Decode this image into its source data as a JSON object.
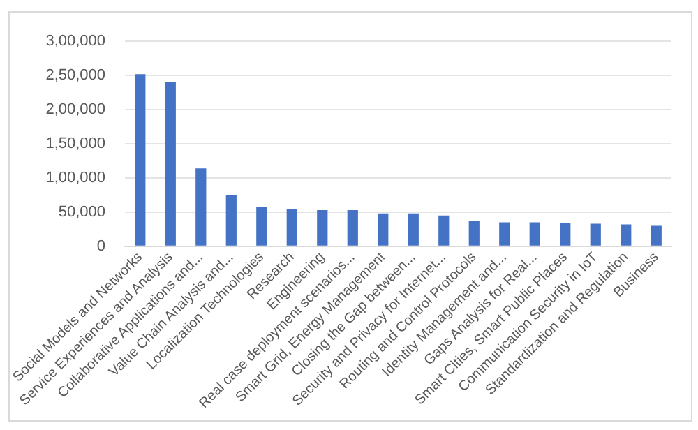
{
  "chart_data": {
    "type": "bar",
    "categories": [
      "Social Models and Networks",
      "Service Experiences and Analysis",
      "Collaborative Applications and...",
      "Value Chain Analysis and...",
      "Localization Technologies",
      "Research",
      "Engineering",
      "Real case deployment scenarios...",
      "Smart Grid, Energy Management",
      "Closing the Gap between...",
      "Security and Privacy for Internet...",
      "Routing and Control Protocols",
      "Identity Management and...",
      "Gaps Analysis for Real...",
      "Smart Cities, Smart Public Places",
      "Communication Security in IoT",
      "Standardization and Regulation",
      "Business"
    ],
    "values": [
      252000,
      240000,
      114000,
      75000,
      57000,
      54000,
      53000,
      53000,
      48000,
      48000,
      45000,
      37000,
      35000,
      35000,
      34000,
      33000,
      32000,
      30000
    ],
    "color": "#4472c4",
    "ylim": [
      0,
      300000
    ],
    "yticks": [
      {
        "value": 0,
        "label": "0"
      },
      {
        "value": 50000,
        "label": "50,000"
      },
      {
        "value": 100000,
        "label": "1,00,000"
      },
      {
        "value": 150000,
        "label": "1,50,000"
      },
      {
        "value": 200000,
        "label": "2,00,000"
      },
      {
        "value": 250000,
        "label": "2,50,000"
      },
      {
        "value": 300000,
        "label": "3,00,000"
      }
    ],
    "grid": "y",
    "legend": false
  }
}
